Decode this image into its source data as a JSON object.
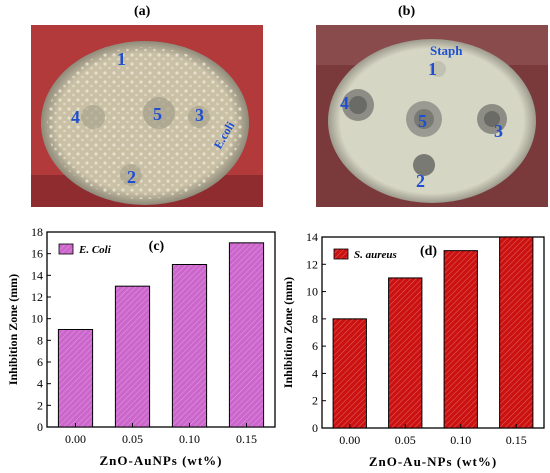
{
  "photo_a": {
    "label": "(a)",
    "bg": "#b23a3a",
    "dish": "#c9c0a6",
    "marks": [
      "1",
      "5",
      "3",
      "4",
      "2"
    ],
    "annotation": "E.coli"
  },
  "photo_b": {
    "label": "(b)",
    "bg": "#7a3a3c",
    "dish": "#d6d6c4",
    "marks": [
      "1",
      "5",
      "3",
      "4",
      "2"
    ],
    "annotation": "Staph"
  },
  "chart_data": [
    {
      "type": "bar",
      "panel_label": "(c)",
      "categories": [
        "0.00",
        "0.05",
        "0.10",
        "0.15"
      ],
      "series": [
        {
          "name": "E. Coli",
          "values": [
            9,
            13,
            15,
            17
          ]
        }
      ],
      "xlabel": "ZnO-AuNPs (wt%)",
      "ylabel": "Inhibition Zone (mm)",
      "ylim": [
        0,
        18
      ],
      "yticks": [
        0,
        2,
        4,
        6,
        8,
        10,
        12,
        14,
        16,
        18
      ],
      "color": "#cc66cc",
      "legend": "top-left",
      "grid": false
    },
    {
      "type": "bar",
      "panel_label": "(d)",
      "categories": [
        "0.00",
        "0.05",
        "0.10",
        "0.15"
      ],
      "series": [
        {
          "name": "S. aureus",
          "values": [
            8,
            11,
            13,
            14
          ]
        }
      ],
      "xlabel": "ZnO-Au-NPs (wt%)",
      "ylabel": "Inhibition Zone (mm)",
      "ylim": [
        0,
        14
      ],
      "yticks": [
        0,
        2,
        4,
        6,
        8,
        10,
        12,
        14
      ],
      "color": "#cc1111",
      "legend": "top-left",
      "grid": false
    }
  ]
}
